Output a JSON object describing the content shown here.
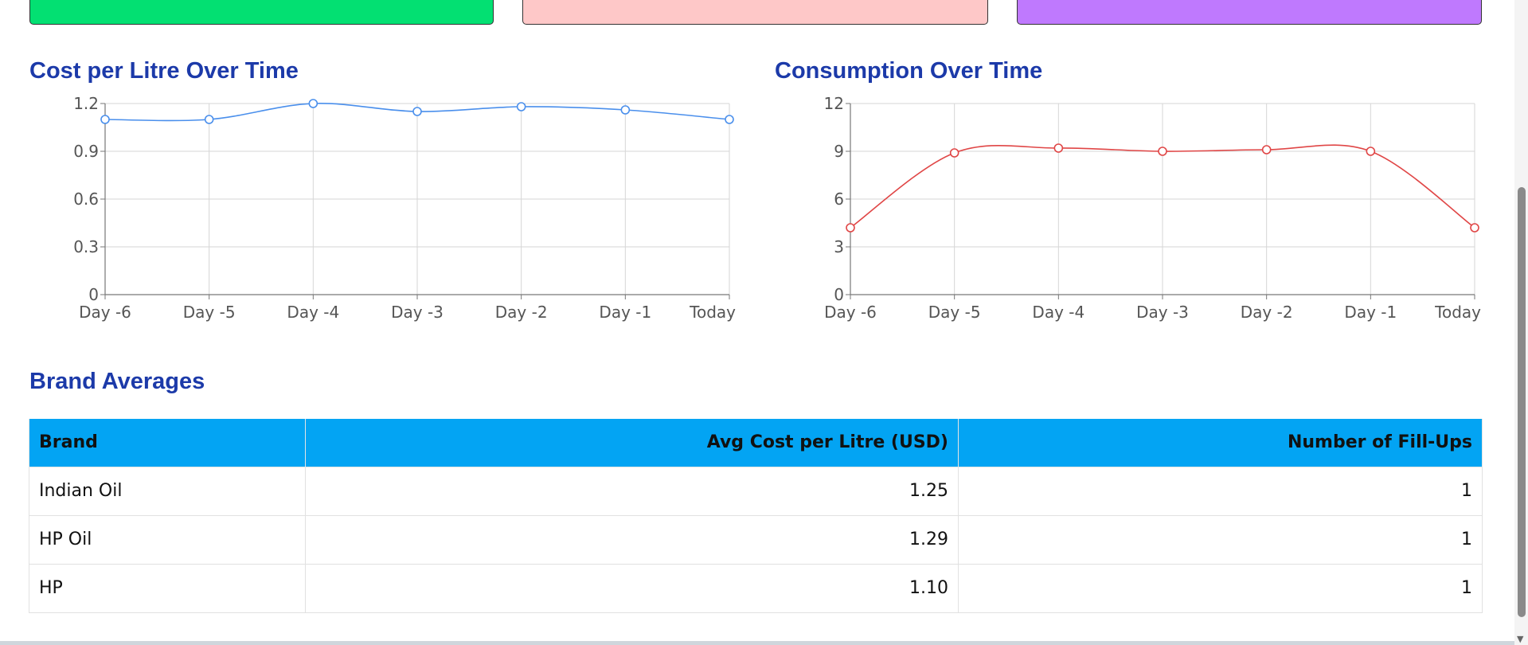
{
  "colors": {
    "card1": "#03e072",
    "card2": "#fec8c8",
    "card3": "#bf79fe",
    "title": "#1c3aa9",
    "table_header": "#03a4f3",
    "cost_line": "#4a8fec",
    "consumption_line": "#e04646"
  },
  "sections": {
    "cost_title": "Cost per Litre Over Time",
    "consumption_title": "Consumption Over Time",
    "brand_title": "Brand Averages"
  },
  "chart_data": [
    {
      "type": "line",
      "title": "Cost per Litre Over Time",
      "categories": [
        "Day -6",
        "Day -5",
        "Day -4",
        "Day -3",
        "Day -2",
        "Day -1",
        "Today"
      ],
      "values": [
        1.1,
        1.1,
        1.2,
        1.15,
        1.18,
        1.16,
        1.1
      ],
      "yticks": [
        "0",
        "0.3",
        "0.6",
        "0.9",
        "1.2"
      ],
      "ylim": [
        0,
        1.2
      ],
      "grid": true,
      "color": "#4a8fec"
    },
    {
      "type": "line",
      "title": "Consumption Over Time",
      "categories": [
        "Day -6",
        "Day -5",
        "Day -4",
        "Day -3",
        "Day -2",
        "Day -1",
        "Today"
      ],
      "values": [
        4.2,
        8.9,
        9.2,
        9.0,
        9.1,
        9.0,
        4.2
      ],
      "yticks": [
        "0",
        "3",
        "6",
        "9",
        "12"
      ],
      "ylim": [
        0,
        12
      ],
      "grid": true,
      "color": "#e04646"
    }
  ],
  "table": {
    "headers": [
      "Brand",
      "Avg Cost per Litre (USD)",
      "Number of Fill-Ups"
    ],
    "rows": [
      [
        "Indian Oil",
        "1.25",
        "1"
      ],
      [
        "HP Oil",
        "1.29",
        "1"
      ],
      [
        "HP",
        "1.10",
        "1"
      ]
    ]
  },
  "scrollbar": {
    "down_arrow_icon": "triangle-down"
  }
}
